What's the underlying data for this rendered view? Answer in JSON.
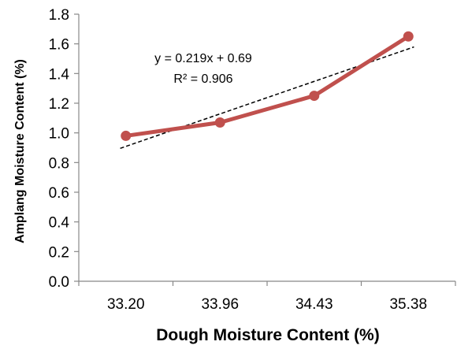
{
  "chart_data": {
    "type": "line",
    "categories": [
      "33.20",
      "33.96",
      "34.43",
      "35.38"
    ],
    "series": [
      {
        "values": [
          0.98,
          1.07,
          1.25,
          1.65
        ],
        "color": "#c0504d"
      }
    ],
    "trendline": {
      "type": "linear",
      "equation": "y = 0.219x + 0.69",
      "r_squared": "R² = 0.906",
      "slope": 0.219,
      "intercept": 0.69,
      "style": "dashed",
      "color": "#000000"
    },
    "xlabel": "Dough Moisture Content (%)",
    "ylabel": "Amplang Moisture Content (%)",
    "ylim": [
      0,
      1.8
    ],
    "yticks": [
      "0.0",
      "0.2",
      "0.4",
      "0.6",
      "0.8",
      "1.0",
      "1.2",
      "1.4",
      "1.6",
      "1.8"
    ],
    "grid": false,
    "legend": "none"
  }
}
